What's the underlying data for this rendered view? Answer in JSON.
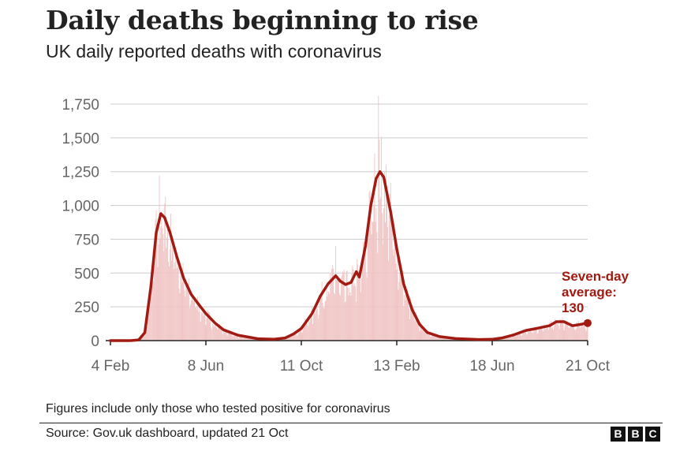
{
  "header": {
    "title": "Daily deaths beginning to rise",
    "subtitle": "UK daily reported deaths with coronavirus"
  },
  "footer": {
    "note": "Figures include only those who tested positive for coronavirus",
    "source": "Source: Gov.uk dashboard, updated 21 Oct",
    "logo_letters": [
      "B",
      "B",
      "C"
    ]
  },
  "colors": {
    "average_line": "#a11b12",
    "daily_bars": "#f0c4c4",
    "gridline": "#cccccc",
    "axis": "#222222",
    "tick_text": "#666666"
  },
  "chart_data": {
    "type": "area",
    "title": "Daily deaths beginning to rise",
    "subtitle": "UK daily reported deaths with coronavirus",
    "xlabel": "",
    "ylabel": "",
    "ylim": [
      0,
      1750
    ],
    "yticks": [
      0,
      250,
      500,
      750,
      1000,
      1250,
      1500,
      1750
    ],
    "ytick_labels": [
      "0",
      "250",
      "500",
      "750",
      "1,000",
      "1,250",
      "1,500",
      "1,750"
    ],
    "xlim": [
      "2020-02-04",
      "2021-10-21"
    ],
    "xticks": [
      "2020-02-04",
      "2020-06-08",
      "2020-10-11",
      "2021-02-13",
      "2021-06-18",
      "2021-10-21"
    ],
    "xtick_labels": [
      "4 Feb",
      "8 Jun",
      "11 Oct",
      "13 Feb",
      "18 Jun",
      "21 Oct"
    ],
    "grid": true,
    "series": [
      {
        "name": "Seven-day average",
        "style": "line",
        "points": [
          [
            "2020-02-04",
            0
          ],
          [
            "2020-03-01",
            0
          ],
          [
            "2020-03-12",
            5
          ],
          [
            "2020-03-20",
            60
          ],
          [
            "2020-03-28",
            400
          ],
          [
            "2020-04-04",
            800
          ],
          [
            "2020-04-10",
            940
          ],
          [
            "2020-04-15",
            910
          ],
          [
            "2020-04-22",
            800
          ],
          [
            "2020-05-01",
            620
          ],
          [
            "2020-05-10",
            460
          ],
          [
            "2020-05-20",
            340
          ],
          [
            "2020-06-01",
            250
          ],
          [
            "2020-06-08",
            200
          ],
          [
            "2020-06-20",
            130
          ],
          [
            "2020-07-01",
            80
          ],
          [
            "2020-07-20",
            40
          ],
          [
            "2020-08-15",
            14
          ],
          [
            "2020-09-05",
            10
          ],
          [
            "2020-09-20",
            20
          ],
          [
            "2020-10-01",
            50
          ],
          [
            "2020-10-11",
            90
          ],
          [
            "2020-10-25",
            200
          ],
          [
            "2020-11-05",
            330
          ],
          [
            "2020-11-15",
            420
          ],
          [
            "2020-11-25",
            480
          ],
          [
            "2020-12-01",
            440
          ],
          [
            "2020-12-08",
            415
          ],
          [
            "2020-12-15",
            430
          ],
          [
            "2020-12-22",
            510
          ],
          [
            "2020-12-26",
            470
          ],
          [
            "2021-01-03",
            700
          ],
          [
            "2021-01-10",
            1000
          ],
          [
            "2021-01-17",
            1200
          ],
          [
            "2021-01-22",
            1250
          ],
          [
            "2021-01-27",
            1210
          ],
          [
            "2021-02-05",
            950
          ],
          [
            "2021-02-13",
            680
          ],
          [
            "2021-02-22",
            420
          ],
          [
            "2021-03-05",
            230
          ],
          [
            "2021-03-15",
            120
          ],
          [
            "2021-03-25",
            60
          ],
          [
            "2021-04-10",
            30
          ],
          [
            "2021-05-01",
            15
          ],
          [
            "2021-06-01",
            8
          ],
          [
            "2021-06-18",
            10
          ],
          [
            "2021-07-01",
            20
          ],
          [
            "2021-07-15",
            40
          ],
          [
            "2021-08-01",
            75
          ],
          [
            "2021-08-15",
            90
          ],
          [
            "2021-09-01",
            110
          ],
          [
            "2021-09-10",
            140
          ],
          [
            "2021-09-20",
            140
          ],
          [
            "2021-10-01",
            110
          ],
          [
            "2021-10-12",
            120
          ],
          [
            "2021-10-21",
            130
          ]
        ]
      },
      {
        "name": "Daily reported deaths",
        "style": "bars",
        "peaks": [
          [
            "2020-04-08",
            1220
          ],
          [
            "2020-11-25",
            700
          ],
          [
            "2021-01-20",
            1820
          ]
        ]
      }
    ],
    "annotations": [
      {
        "lines": [
          "Seven-day",
          "average:",
          "130"
        ],
        "at": [
          "2021-10-21",
          130
        ]
      }
    ]
  }
}
